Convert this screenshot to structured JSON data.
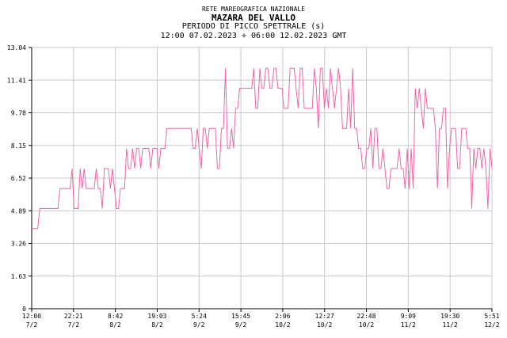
{
  "header": {
    "network": "RETE MAREOGRAFICA NAZIONALE",
    "station": "MAZARA DEL VALLO",
    "parameter": "PERIODO DI PICCO SPETTRALE (s)",
    "range": "12:00 07.02.2023 ÷ 06:00 12.02.2023 GMT"
  },
  "chart_data": {
    "type": "line",
    "title": "PERIODO DI PICCO SPETTRALE (s)",
    "ylim": [
      0,
      13.04
    ],
    "y_ticks": [
      "13.04",
      "11.41",
      "9.78",
      "8.15",
      "6.52",
      "4.89",
      "3.26",
      "1.63",
      "0"
    ],
    "x_ticks": [
      {
        "time": "12:00",
        "date": "7/2"
      },
      {
        "time": "22:21",
        "date": "7/2"
      },
      {
        "time": "8:42",
        "date": "8/2"
      },
      {
        "time": "19:03",
        "date": "8/2"
      },
      {
        "time": "5:24",
        "date": "9/2"
      },
      {
        "time": "15:45",
        "date": "9/2"
      },
      {
        "time": "2:06",
        "date": "10/2"
      },
      {
        "time": "12:27",
        "date": "10/2"
      },
      {
        "time": "22:48",
        "date": "10/2"
      },
      {
        "time": "9:09",
        "date": "11/2"
      },
      {
        "time": "19:30",
        "date": "11/2"
      },
      {
        "time": "5:51",
        "date": "12/2"
      }
    ],
    "grid": true,
    "line_color": "#ee66aa",
    "series": [
      {
        "values": [
          4.0,
          4.0,
          4.0,
          4.0,
          5.0,
          5.0,
          5.0,
          5.0,
          5.0,
          5.0,
          5.0,
          5.0,
          5.0,
          5.0,
          6.0,
          6.0,
          6.0,
          6.0,
          6.0,
          6.0,
          7.0,
          5.0,
          5.0,
          5.0,
          7.0,
          6.0,
          7.0,
          6.0,
          6.0,
          6.0,
          6.0,
          6.0,
          7.0,
          6.0,
          6.0,
          5.0,
          7.0,
          7.0,
          7.0,
          6.0,
          7.0,
          6.0,
          5.0,
          5.0,
          6.0,
          6.0,
          6.0,
          8.0,
          7.0,
          7.0,
          8.0,
          7.0,
          8.0,
          8.0,
          7.0,
          8.0,
          8.0,
          8.0,
          8.0,
          7.0,
          8.0,
          8.0,
          8.0,
          7.0,
          8.0,
          8.0,
          8.0,
          9.0,
          9.0,
          9.0,
          9.0,
          9.0,
          9.0,
          9.0,
          9.0,
          9.0,
          9.0,
          9.0,
          9.0,
          9.0,
          8.0,
          8.0,
          9.0,
          8.0,
          7.0,
          9.0,
          9.0,
          8.0,
          9.0,
          9.0,
          9.0,
          9.0,
          7.0,
          7.0,
          9.0,
          9.0,
          12.0,
          8.0,
          8.0,
          9.0,
          8.0,
          10.0,
          10.0,
          11.0,
          11.0,
          11.0,
          11.0,
          11.0,
          11.0,
          11.0,
          12.0,
          10.0,
          10.0,
          12.0,
          11.0,
          11.0,
          12.0,
          12.0,
          11.0,
          11.0,
          12.0,
          12.0,
          11.0,
          11.0,
          11.0,
          10.0,
          10.0,
          10.0,
          12.0,
          12.0,
          12.0,
          11.0,
          10.0,
          12.0,
          12.0,
          10.0,
          10.0,
          10.0,
          10.0,
          10.0,
          12.0,
          11.0,
          9.0,
          12.0,
          12.0,
          10.0,
          11.0,
          10.0,
          12.0,
          11.0,
          10.0,
          11.0,
          12.0,
          11.0,
          9.0,
          9.0,
          9.0,
          11.0,
          9.0,
          12.0,
          9.0,
          9.0,
          8.0,
          8.0,
          7.0,
          7.0,
          8.0,
          8.0,
          9.0,
          7.0,
          9.0,
          9.0,
          7.0,
          7.0,
          8.0,
          7.0,
          6.0,
          6.0,
          7.0,
          7.0,
          7.0,
          7.0,
          8.0,
          7.0,
          7.0,
          6.0,
          8.0,
          6.0,
          8.0,
          6.0,
          11.0,
          10.0,
          11.0,
          10.0,
          9.0,
          11.0,
          10.0,
          10.0,
          10.0,
          10.0,
          9.0,
          6.0,
          9.0,
          9.0,
          10.0,
          10.0,
          6.0,
          8.0,
          9.0,
          9.0,
          9.0,
          7.0,
          7.0,
          9.0,
          9.0,
          9.0,
          8.0,
          8.0,
          5.0,
          8.0,
          7.0,
          8.0,
          8.0,
          7.0,
          8.0,
          7.0,
          5.0,
          8.0,
          7.0
        ]
      }
    ]
  }
}
